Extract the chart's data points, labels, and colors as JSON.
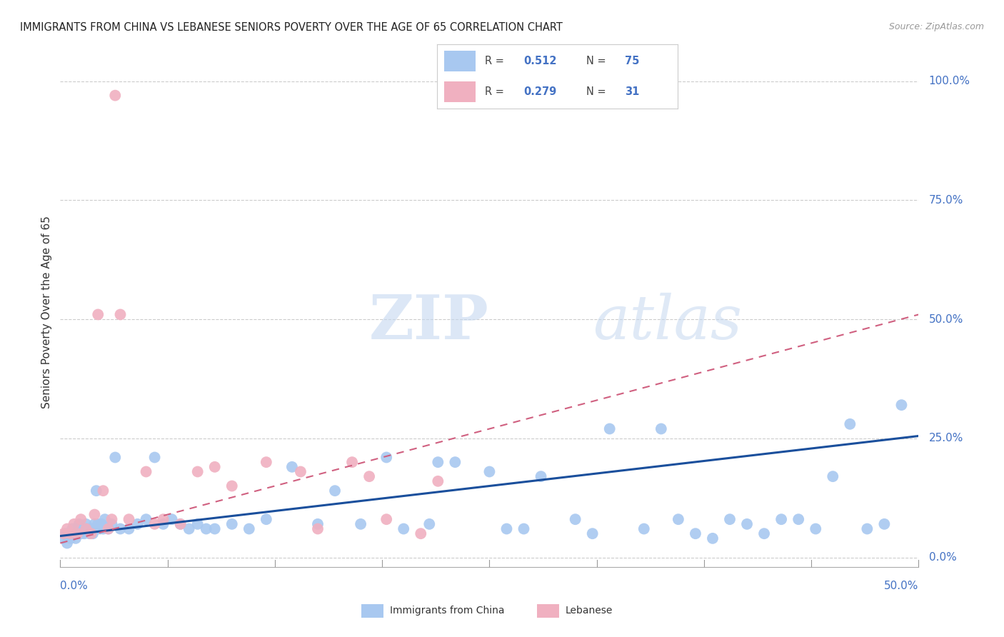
{
  "title": "IMMIGRANTS FROM CHINA VS LEBANESE SENIORS POVERTY OVER THE AGE OF 65 CORRELATION CHART",
  "source": "Source: ZipAtlas.com",
  "ylabel": "Seniors Poverty Over the Age of 65",
  "ytick_labels": [
    "0.0%",
    "25.0%",
    "50.0%",
    "75.0%",
    "100.0%"
  ],
  "ytick_values": [
    0,
    25,
    50,
    75,
    100
  ],
  "xlim": [
    0,
    50
  ],
  "ylim": [
    -2,
    105
  ],
  "watermark_zip": "ZIP",
  "watermark_atlas": "atlas",
  "legend_r_china": "0.512",
  "legend_n_china": "75",
  "legend_r_lebanese": "0.279",
  "legend_n_lebanese": "31",
  "china_color": "#a8c8f0",
  "china_line_color": "#1a4f9c",
  "lebanese_color": "#f0b0c0",
  "lebanese_line_color": "#d06080",
  "china_scatter_x": [
    0.2,
    0.3,
    0.4,
    0.5,
    0.6,
    0.7,
    0.8,
    0.9,
    1.0,
    1.1,
    1.2,
    1.3,
    1.4,
    1.5,
    1.6,
    1.7,
    1.8,
    1.9,
    2.0,
    2.1,
    2.2,
    2.3,
    2.4,
    2.5,
    2.6,
    2.8,
    3.0,
    3.2,
    3.5,
    4.0,
    4.5,
    5.0,
    5.5,
    6.0,
    6.5,
    7.0,
    7.5,
    8.0,
    8.5,
    9.0,
    10.0,
    11.0,
    12.0,
    13.5,
    15.0,
    16.0,
    17.5,
    19.0,
    20.0,
    21.5,
    23.0,
    25.0,
    27.0,
    28.0,
    30.0,
    32.0,
    34.0,
    35.0,
    37.0,
    38.0,
    39.0,
    40.0,
    42.0,
    43.0,
    44.0,
    45.0,
    46.0,
    47.0,
    48.0,
    49.0,
    22.0,
    26.0,
    31.0,
    36.0,
    41.0
  ],
  "china_scatter_y": [
    4,
    5,
    3,
    5,
    4,
    6,
    5,
    4,
    6,
    7,
    5,
    6,
    5,
    7,
    6,
    5,
    6,
    5,
    7,
    14,
    7,
    6,
    7,
    6,
    8,
    6,
    7,
    21,
    6,
    6,
    7,
    8,
    21,
    7,
    8,
    7,
    6,
    7,
    6,
    6,
    7,
    6,
    8,
    19,
    7,
    14,
    7,
    21,
    6,
    7,
    20,
    18,
    6,
    17,
    8,
    27,
    6,
    27,
    5,
    4,
    8,
    7,
    8,
    8,
    6,
    17,
    28,
    6,
    7,
    32,
    20,
    6,
    5,
    8,
    5
  ],
  "lebanese_scatter_x": [
    0.2,
    0.4,
    0.6,
    0.8,
    1.0,
    1.2,
    1.5,
    1.8,
    2.0,
    2.2,
    2.5,
    2.8,
    3.0,
    3.5,
    4.0,
    5.0,
    5.5,
    6.0,
    7.0,
    8.0,
    9.0,
    10.0,
    12.0,
    14.0,
    15.0,
    17.0,
    18.0,
    19.0,
    21.0,
    22.0,
    3.2
  ],
  "lebanese_scatter_y": [
    5,
    6,
    5,
    7,
    5,
    8,
    6,
    5,
    9,
    51,
    14,
    6,
    8,
    51,
    8,
    18,
    7,
    8,
    7,
    18,
    19,
    15,
    20,
    18,
    6,
    20,
    17,
    8,
    5,
    16,
    97
  ],
  "china_trendline_x0": 0,
  "china_trendline_y0": 4.5,
  "china_trendline_x1": 50,
  "china_trendline_y1": 25.5,
  "leb_trendline_x0": 0,
  "leb_trendline_y0": 3.0,
  "leb_trendline_x1": 50,
  "leb_trendline_y1": 51.0
}
